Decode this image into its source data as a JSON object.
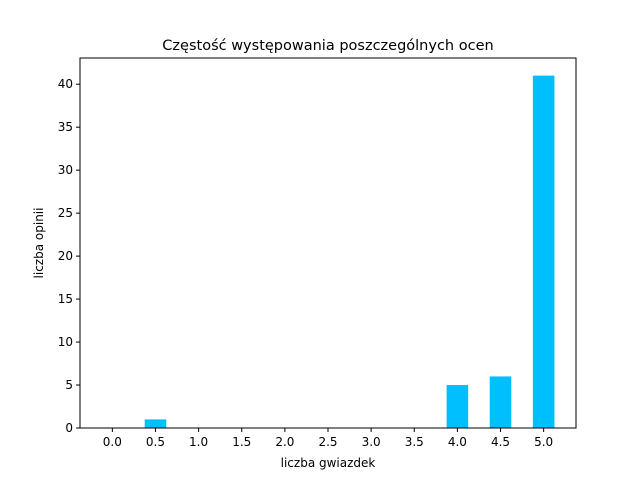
{
  "chart_data": {
    "type": "bar",
    "title": "Częstość występowania poszczególnych ocen",
    "xlabel": "liczba gwiazdek",
    "ylabel": "liczba opinii",
    "categories": [
      "0.0",
      "0.5",
      "1.0",
      "1.5",
      "2.0",
      "2.5",
      "3.0",
      "3.5",
      "4.0",
      "4.5",
      "5.0"
    ],
    "values": [
      0,
      1,
      0,
      0,
      0,
      0,
      0,
      0,
      5,
      6,
      41
    ],
    "yticks": [
      "0",
      "5",
      "10",
      "15",
      "20",
      "25",
      "30",
      "35",
      "40"
    ],
    "ylim": [
      0,
      43.05
    ],
    "grid": false,
    "bar_color": "#00bfff"
  }
}
